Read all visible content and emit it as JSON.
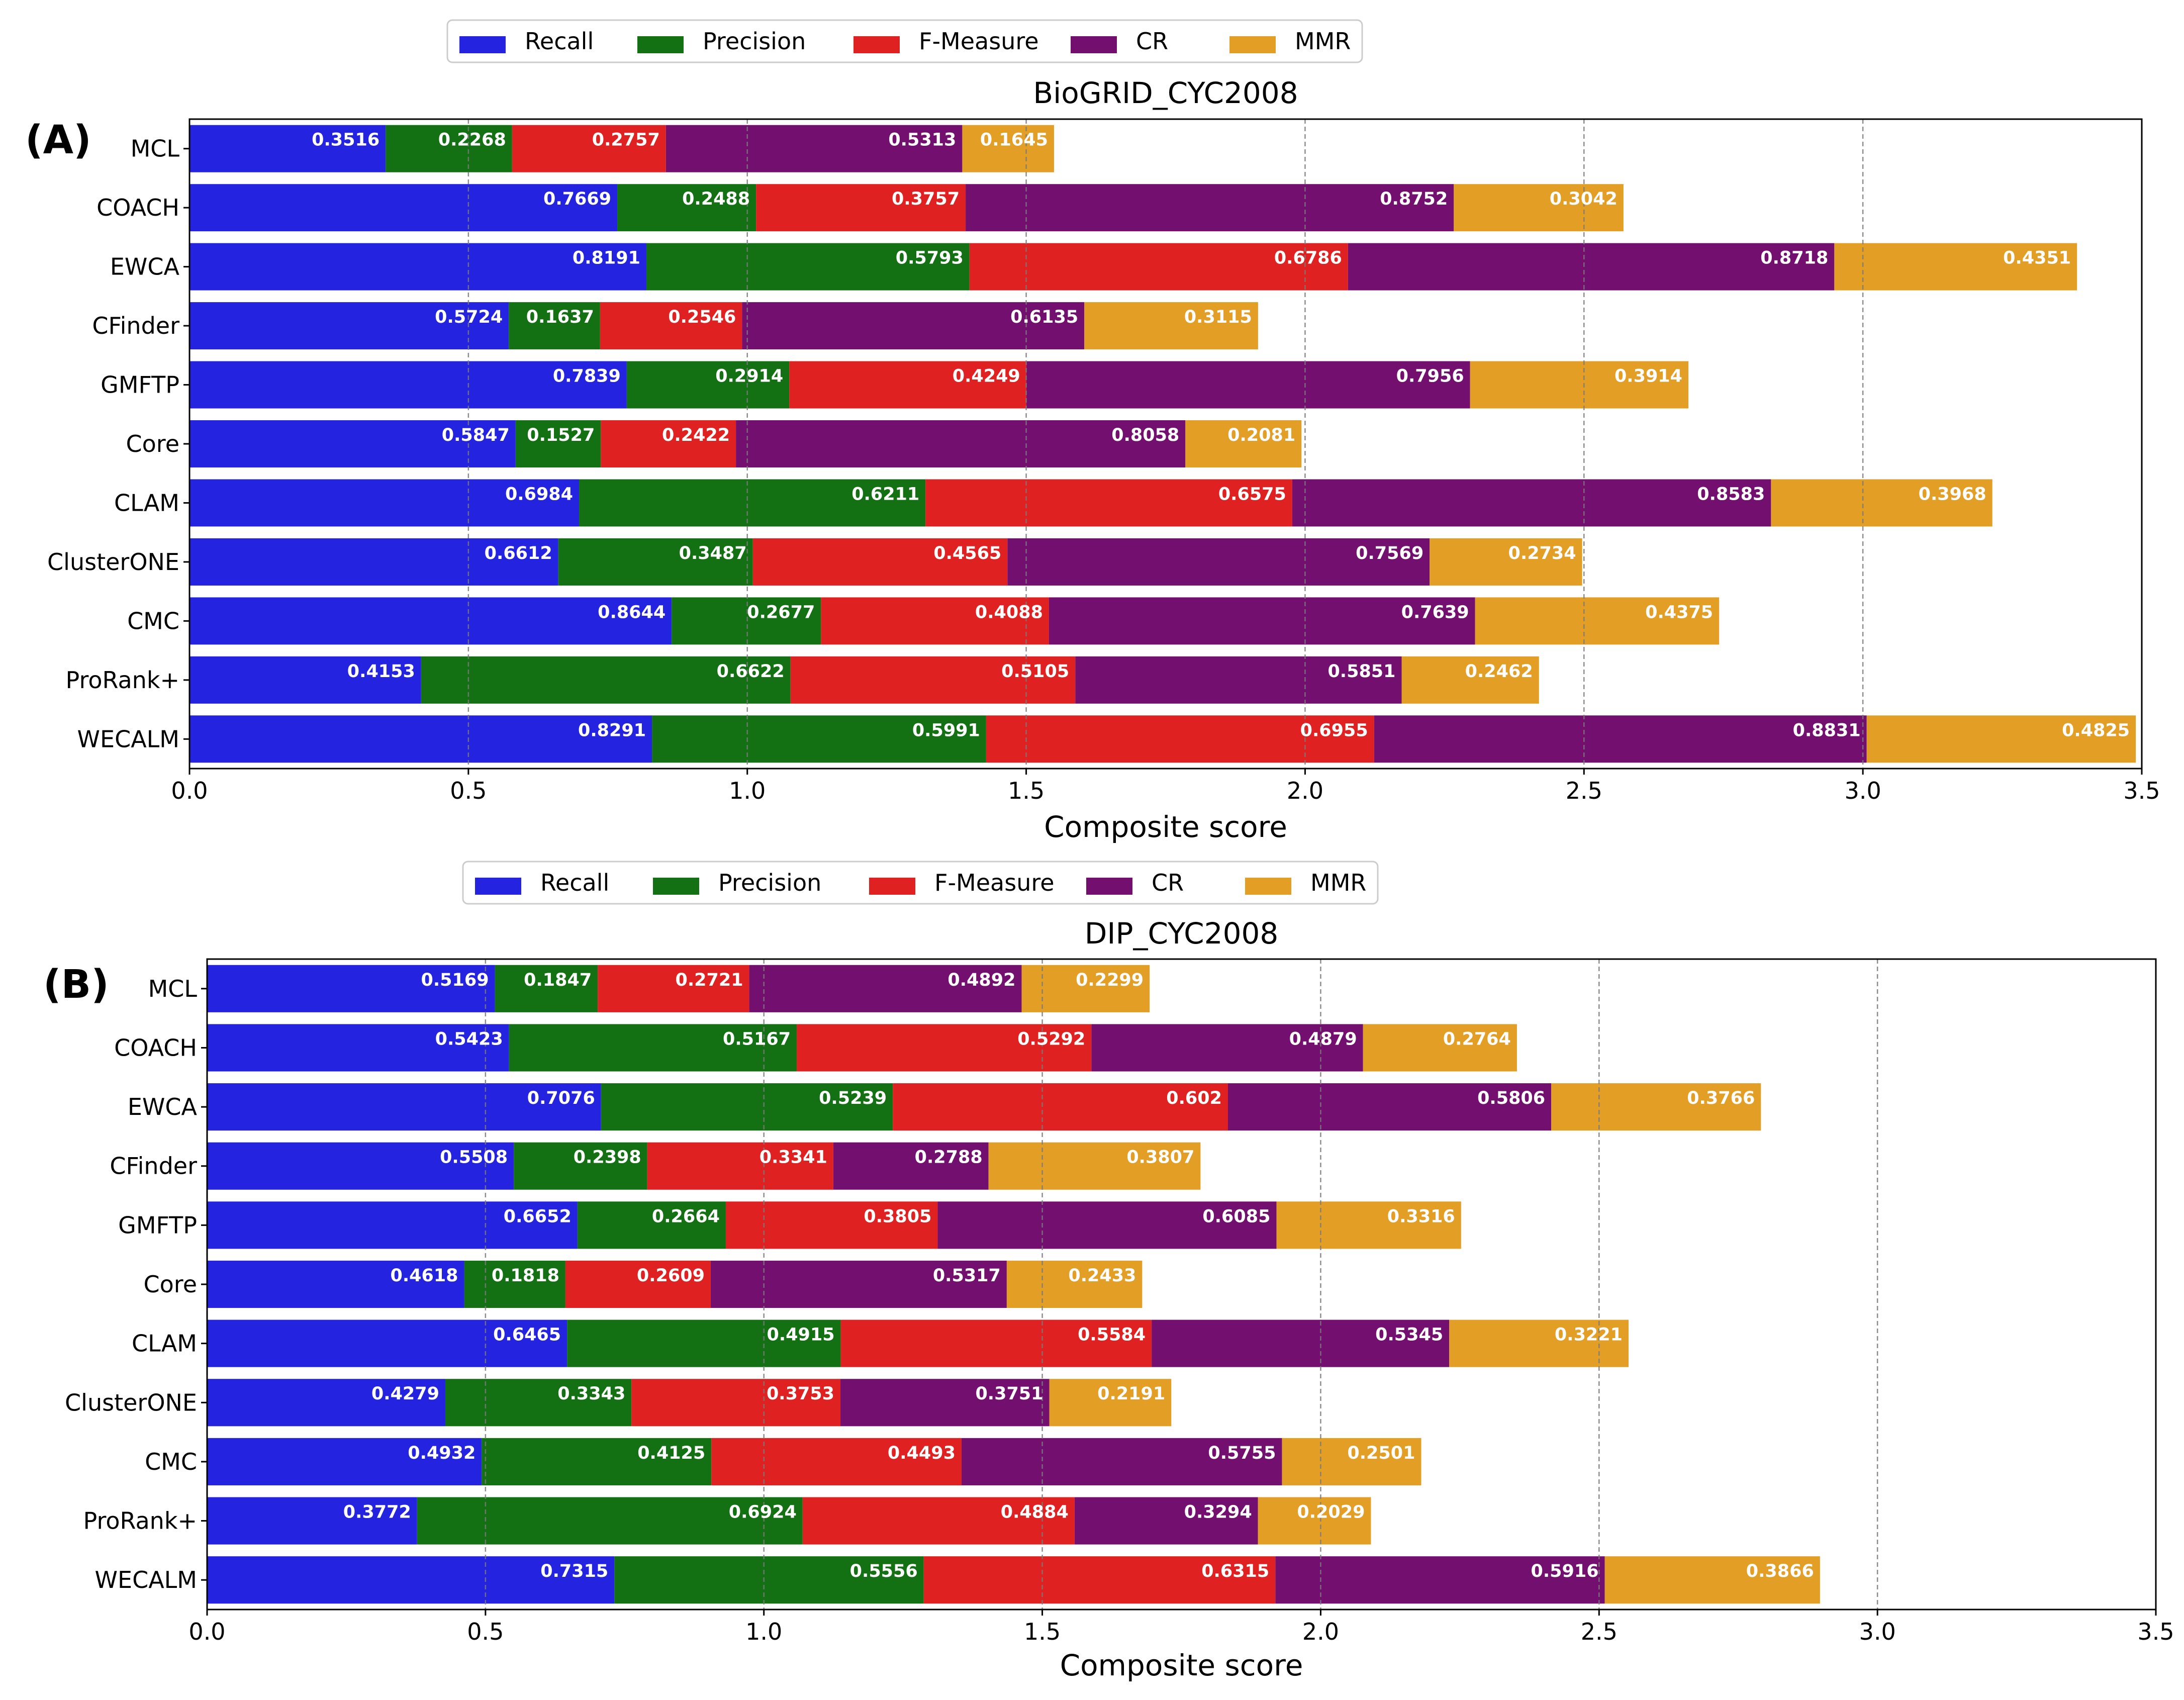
{
  "chart_data": [
    {
      "panel_label": "(A)",
      "type": "bar",
      "orientation": "horizontal",
      "stacked": true,
      "title": "BioGRID_CYC2008",
      "xlabel": "Composite score",
      "ylabel": "",
      "xlim": [
        0.0,
        3.5
      ],
      "xticks": [
        "0.0",
        "0.5",
        "1.0",
        "1.5",
        "2.0",
        "2.5",
        "3.0",
        "3.5"
      ],
      "grid": "vertical dashed",
      "legend_position": "top-center",
      "categories": [
        "MCL",
        "COACH",
        "EWCA",
        "CFinder",
        "GMFTP",
        "Core",
        "CLAM",
        "ClusterONE",
        "CMC",
        "ProRank+",
        "WECALM"
      ],
      "series": [
        {
          "name": "Recall",
          "color": "#2323e0",
          "values": [
            "0.3516",
            "0.7669",
            "0.8191",
            "0.5724",
            "0.7839",
            "0.5847",
            "0.6984",
            "0.6612",
            "0.8644",
            "0.4153",
            "0.8291"
          ]
        },
        {
          "name": "Precision",
          "color": "#137113",
          "values": [
            "0.2268",
            "0.2488",
            "0.5793",
            "0.1637",
            "0.2914",
            "0.1527",
            "0.6211",
            "0.3487",
            "0.2677",
            "0.6622",
            "0.5991"
          ]
        },
        {
          "name": "F-Measure",
          "color": "#e02121",
          "values": [
            "0.2757",
            "0.3757",
            "0.6786",
            "0.2546",
            "0.4249",
            "0.2422",
            "0.6575",
            "0.4565",
            "0.4088",
            "0.5105",
            "0.6955"
          ]
        },
        {
          "name": "CR",
          "color": "#73106f",
          "values": [
            "0.5313",
            "0.8752",
            "0.8718",
            "0.6135",
            "0.7956",
            "0.8058",
            "0.8583",
            "0.7569",
            "0.7639",
            "0.5851",
            "0.8831"
          ]
        },
        {
          "name": "MMR",
          "color": "#e29e25",
          "values": [
            "0.1645",
            "0.3042",
            "0.4351",
            "0.3115",
            "0.3914",
            "0.2081",
            "0.3968",
            "0.2734",
            "0.4375",
            "0.2462",
            "0.4825"
          ]
        }
      ]
    },
    {
      "panel_label": "(B)",
      "type": "bar",
      "orientation": "horizontal",
      "stacked": true,
      "title": "DIP_CYC2008",
      "xlabel": "Composite score",
      "ylabel": "",
      "xlim": [
        0.0,
        3.5
      ],
      "xticks": [
        "0.0",
        "0.5",
        "1.0",
        "1.5",
        "2.0",
        "2.5",
        "3.0",
        "3.5"
      ],
      "grid": "vertical dashed",
      "legend_position": "top-center",
      "categories": [
        "MCL",
        "COACH",
        "EWCA",
        "CFinder",
        "GMFTP",
        "Core",
        "CLAM",
        "ClusterONE",
        "CMC",
        "ProRank+",
        "WECALM"
      ],
      "series": [
        {
          "name": "Recall",
          "color": "#2323e0",
          "values": [
            "0.5169",
            "0.5423",
            "0.7076",
            "0.5508",
            "0.6652",
            "0.4618",
            "0.6465",
            "0.4279",
            "0.4932",
            "0.3772",
            "0.7315"
          ]
        },
        {
          "name": "Precision",
          "color": "#137113",
          "values": [
            "0.1847",
            "0.5167",
            "0.5239",
            "0.2398",
            "0.2664",
            "0.1818",
            "0.4915",
            "0.3343",
            "0.4125",
            "0.6924",
            "0.5556"
          ]
        },
        {
          "name": "F-Measure",
          "color": "#e02121",
          "values": [
            "0.2721",
            "0.5292",
            "0.602",
            "0.3341",
            "0.3805",
            "0.2609",
            "0.5584",
            "0.3753",
            "0.4493",
            "0.4884",
            "0.6315"
          ]
        },
        {
          "name": "CR",
          "color": "#73106f",
          "values": [
            "0.4892",
            "0.4879",
            "0.5806",
            "0.2788",
            "0.6085",
            "0.5317",
            "0.5345",
            "0.3751",
            "0.5755",
            "0.3294",
            "0.5916"
          ]
        },
        {
          "name": "MMR",
          "color": "#e29e25",
          "values": [
            "0.2299",
            "0.2764",
            "0.3766",
            "0.3807",
            "0.3316",
            "0.2433",
            "0.3221",
            "0.2191",
            "0.2501",
            "0.2029",
            "0.3866"
          ]
        }
      ]
    }
  ]
}
